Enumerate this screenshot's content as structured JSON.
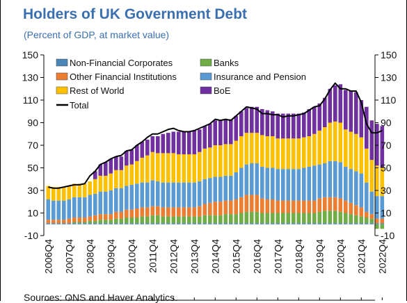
{
  "header": {
    "title": "Holders of UK Government Debt",
    "subtitle": "(Percent of GDP, at market value)"
  },
  "footer": {
    "source": "Sources: ONS and Haver Analytics."
  },
  "chart_data": {
    "type": "bar",
    "stacked": true,
    "title": "Holders of UK Government Debt",
    "subtitle": "(Percent of GDP, at market value)",
    "xlabel": "",
    "ylabel": "",
    "ylim": [
      -10,
      150
    ],
    "yticks": [
      -10,
      10,
      30,
      50,
      70,
      90,
      110,
      130,
      150
    ],
    "y_axis_sides": [
      "left",
      "right"
    ],
    "grid": false,
    "legend_position": "top-left",
    "x_tick_labels": [
      "2006Q4",
      "2007Q4",
      "2008Q4",
      "2009Q4",
      "2010Q4",
      "2011Q4",
      "2012Q4",
      "2013Q4",
      "2014Q4",
      "2015Q4",
      "2016Q4",
      "2017Q4",
      "2018Q4",
      "2019Q4",
      "2020Q4",
      "2021Q4",
      "2022Q4"
    ],
    "categories": [
      "2006Q4",
      "2007Q1",
      "2007Q2",
      "2007Q3",
      "2007Q4",
      "2008Q1",
      "2008Q2",
      "2008Q3",
      "2008Q4",
      "2009Q1",
      "2009Q2",
      "2009Q3",
      "2009Q4",
      "2010Q1",
      "2010Q2",
      "2010Q3",
      "2010Q4",
      "2011Q1",
      "2011Q2",
      "2011Q3",
      "2011Q4",
      "2012Q1",
      "2012Q2",
      "2012Q3",
      "2012Q4",
      "2013Q1",
      "2013Q2",
      "2013Q3",
      "2013Q4",
      "2014Q1",
      "2014Q2",
      "2014Q3",
      "2014Q4",
      "2015Q1",
      "2015Q2",
      "2015Q3",
      "2015Q4",
      "2016Q1",
      "2016Q2",
      "2016Q3",
      "2016Q4",
      "2017Q1",
      "2017Q2",
      "2017Q3",
      "2017Q4",
      "2018Q1",
      "2018Q2",
      "2018Q3",
      "2018Q4",
      "2019Q1",
      "2019Q2",
      "2019Q3",
      "2019Q4",
      "2020Q1",
      "2020Q2",
      "2020Q3",
      "2020Q4",
      "2021Q1",
      "2021Q2",
      "2021Q3",
      "2021Q4",
      "2022Q1",
      "2022Q2",
      "2022Q3",
      "2022Q4"
    ],
    "legend": [
      {
        "name": "Non-Financial Corporates",
        "color": "#4a86b8"
      },
      {
        "name": "Banks",
        "color": "#70ad47"
      },
      {
        "name": "Other Financial Institutions",
        "color": "#ed7d31"
      },
      {
        "name": "Insurance and Pension",
        "color": "#5b9bd5"
      },
      {
        "name": "Rest of World",
        "color": "#ffc000"
      },
      {
        "name": "BoE",
        "color": "#7030a0"
      },
      {
        "name": "Total",
        "color": "#000000"
      }
    ],
    "series": [
      {
        "name": "Non-Financial Corporates",
        "color": "#4a86b8",
        "values": [
          1,
          1,
          1,
          1,
          1,
          1,
          1,
          1,
          1,
          1,
          1,
          1,
          1,
          1,
          1,
          1,
          1,
          1,
          1,
          1,
          1,
          1,
          1,
          1,
          1,
          1,
          1,
          1,
          1,
          1,
          1,
          1,
          1,
          1,
          1,
          1,
          1,
          1,
          1,
          1,
          1,
          1,
          1,
          1,
          1,
          1,
          1,
          1,
          1,
          1,
          1,
          1,
          1,
          1,
          1,
          1,
          1,
          1,
          1,
          1,
          1,
          1,
          1,
          1,
          1
        ]
      },
      {
        "name": "Banks",
        "color": "#70ad47",
        "values": [
          0,
          0,
          0,
          0,
          0,
          1,
          1,
          1,
          2,
          2,
          3,
          3,
          3,
          4,
          4,
          5,
          5,
          5,
          6,
          6,
          7,
          7,
          6,
          6,
          6,
          6,
          6,
          6,
          6,
          6,
          7,
          7,
          7,
          7,
          8,
          8,
          8,
          9,
          10,
          10,
          10,
          9,
          9,
          9,
          9,
          9,
          9,
          9,
          9,
          9,
          9,
          9,
          10,
          11,
          11,
          11,
          10,
          9,
          8,
          7,
          6,
          5,
          4,
          -4,
          -4
        ]
      },
      {
        "name": "Other Financial Institutions",
        "color": "#ed7d31",
        "values": [
          3,
          3,
          3,
          3,
          4,
          4,
          4,
          4,
          4,
          5,
          5,
          5,
          5,
          6,
          6,
          7,
          7,
          8,
          8,
          8,
          8,
          8,
          8,
          8,
          8,
          8,
          8,
          8,
          8,
          9,
          10,
          11,
          12,
          12,
          12,
          12,
          13,
          14,
          15,
          15,
          15,
          13,
          12,
          12,
          11,
          11,
          11,
          11,
          11,
          11,
          11,
          11,
          12,
          12,
          12,
          12,
          12,
          11,
          10,
          9,
          8,
          5,
          4,
          4,
          4
        ]
      },
      {
        "name": "Insurance and Pension",
        "color": "#5b9bd5",
        "values": [
          18,
          17,
          17,
          17,
          17,
          18,
          18,
          18,
          19,
          19,
          20,
          20,
          21,
          21,
          21,
          21,
          22,
          22,
          22,
          22,
          23,
          22,
          22,
          22,
          22,
          22,
          22,
          22,
          22,
          22,
          22,
          22,
          22,
          22,
          22,
          22,
          24,
          26,
          27,
          28,
          28,
          28,
          28,
          28,
          28,
          28,
          28,
          28,
          28,
          29,
          30,
          31,
          30,
          30,
          32,
          32,
          32,
          30,
          30,
          30,
          30,
          26,
          20,
          20,
          20
        ]
      },
      {
        "name": "Rest of World",
        "color": "#ffc000",
        "values": [
          12,
          12,
          12,
          12,
          12,
          12,
          12,
          12,
          12,
          13,
          14,
          14,
          15,
          16,
          16,
          18,
          18,
          20,
          22,
          24,
          25,
          25,
          26,
          26,
          26,
          25,
          25,
          25,
          25,
          26,
          27,
          27,
          28,
          28,
          28,
          28,
          28,
          28,
          28,
          27,
          27,
          28,
          28,
          28,
          27,
          27,
          27,
          27,
          27,
          27,
          27,
          28,
          30,
          32,
          34,
          35,
          35,
          33,
          33,
          33,
          32,
          30,
          28,
          27,
          25
        ]
      },
      {
        "name": "BoE",
        "color": "#7030a0",
        "values": [
          0,
          0,
          0,
          0,
          0,
          0,
          0,
          0,
          0,
          7,
          10,
          12,
          13,
          12,
          12,
          13,
          13,
          14,
          14,
          14,
          14,
          15,
          17,
          18,
          19,
          20,
          20,
          20,
          21,
          20,
          20,
          21,
          22,
          22,
          22,
          22,
          22,
          22,
          22,
          23,
          23,
          23,
          23,
          22,
          22,
          22,
          22,
          22,
          22,
          22,
          24,
          24,
          24,
          26,
          30,
          32,
          34,
          35,
          36,
          37,
          33,
          37,
          35,
          37,
          37
        ]
      },
      {
        "name": "Total",
        "color": "#000000",
        "type": "line",
        "values": [
          33,
          32,
          32,
          33,
          34,
          35,
          35,
          36,
          43,
          47,
          53,
          55,
          58,
          60,
          61,
          65,
          66,
          70,
          73,
          77,
          80,
          80,
          82,
          84,
          85,
          83,
          82,
          82,
          83,
          85,
          87,
          89,
          93,
          92,
          93,
          92,
          96,
          100,
          104,
          103,
          102,
          98,
          98,
          97,
          97,
          95,
          96,
          96,
          97,
          98,
          101,
          104,
          105,
          111,
          119,
          125,
          120,
          120,
          118,
          118,
          108,
          89,
          81,
          81,
          83
        ]
      }
    ]
  }
}
